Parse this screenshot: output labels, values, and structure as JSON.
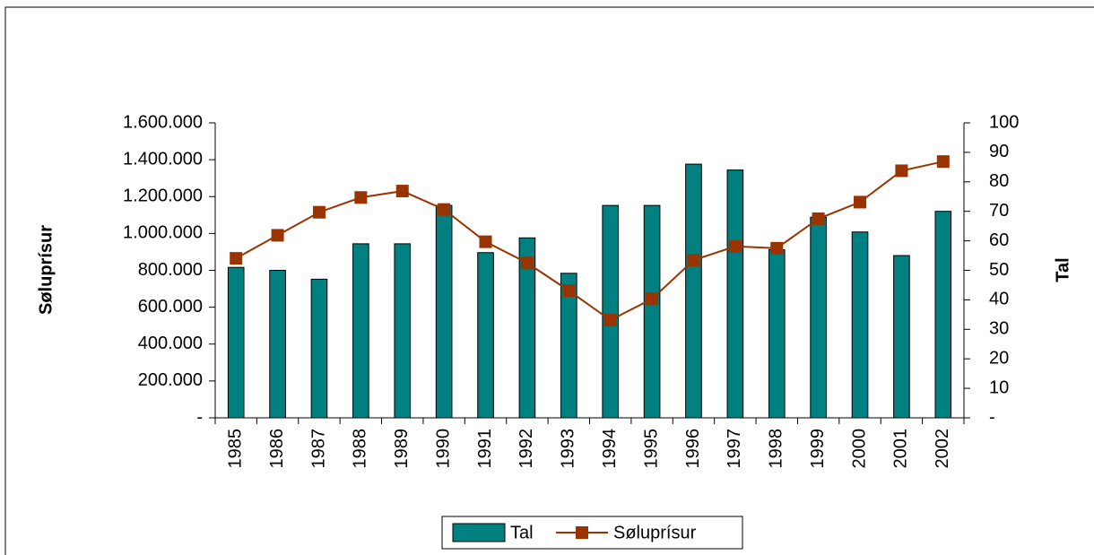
{
  "chart_data": {
    "type": "bar_line",
    "categories": [
      "1985",
      "1986",
      "1987",
      "1988",
      "1989",
      "1990",
      "1991",
      "1992",
      "1993",
      "1994",
      "1995",
      "1996",
      "1997",
      "1998",
      "1999",
      "2000",
      "2001",
      "2002"
    ],
    "series": [
      {
        "name": "Tal",
        "type": "bar",
        "axis": "y2",
        "color": "#008080",
        "values": [
          51,
          50,
          47,
          59,
          59,
          72,
          56,
          61,
          49,
          72,
          72,
          86,
          84,
          57,
          68,
          63,
          55,
          70
        ]
      },
      {
        "name": "Søluprísur",
        "type": "line",
        "axis": "y",
        "color": "#993300",
        "values": [
          865000,
          990000,
          1115000,
          1195000,
          1230000,
          1130000,
          955000,
          840000,
          690000,
          530000,
          645000,
          855000,
          930000,
          920000,
          1080000,
          1170000,
          1340000,
          1390000
        ]
      }
    ],
    "ylabel": "Søluprísur",
    "y2label": "Tal",
    "ylim": [
      0,
      1600000
    ],
    "yticks": [
      {
        "value": 0,
        "label": "-"
      },
      {
        "value": 200000,
        "label": "200.000"
      },
      {
        "value": 400000,
        "label": "400.000"
      },
      {
        "value": 600000,
        "label": "600.000"
      },
      {
        "value": 800000,
        "label": "800.000"
      },
      {
        "value": 1000000,
        "label": "1.000.000"
      },
      {
        "value": 1200000,
        "label": "1.200.000"
      },
      {
        "value": 1400000,
        "label": "1.400.000"
      },
      {
        "value": 1600000,
        "label": "1.600.000"
      }
    ],
    "y2lim": [
      0,
      100
    ],
    "y2ticks": [
      {
        "value": 0,
        "label": "-"
      },
      10,
      20,
      30,
      40,
      50,
      60,
      70,
      80,
      90,
      100
    ],
    "legend": "bottom"
  }
}
